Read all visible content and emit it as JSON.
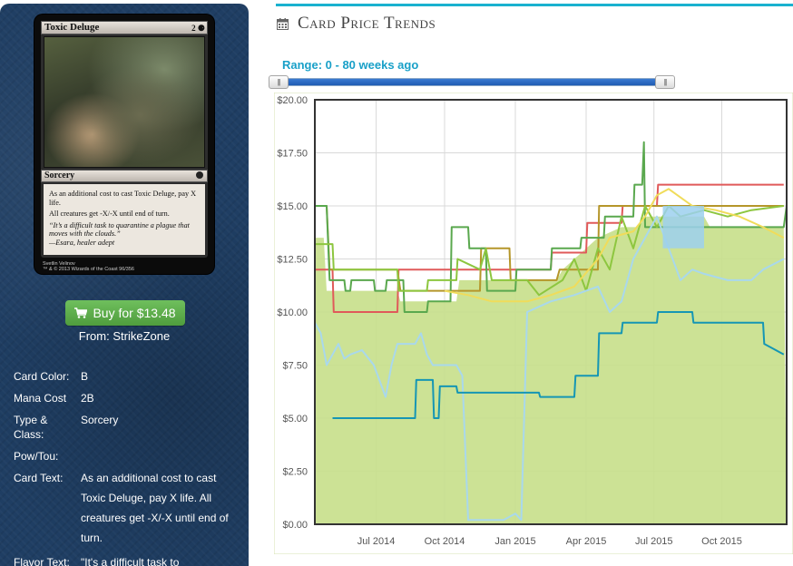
{
  "card": {
    "name": "Toxic Deluge",
    "mana": "2 ⚈",
    "type_line": "Sorcery",
    "rules_text": [
      "As an additional cost to cast Toxic Deluge, pay X life.",
      "All creatures get -X/-X until end of turn."
    ],
    "flavor": "“It’s a difficult task to quarantine a plague that moves with the clouds.”",
    "flavor_attribution": "—Esara, healer adept",
    "artist": "Svetlin Velinov",
    "copyright": "™ & © 2013 Wizards of the Coast 96/356"
  },
  "buy": {
    "label": "Buy for $13.48",
    "from": "From: StrikeZone"
  },
  "details": [
    {
      "label": "Card Color:",
      "value": "B"
    },
    {
      "label": "Mana Cost",
      "value": "2B"
    },
    {
      "label": "Type & Class:",
      "value": "Sorcery"
    },
    {
      "label": "Pow/Tou:",
      "value": ""
    },
    {
      "label": "Card Text:",
      "value": "As an additional cost to cast Toxic Deluge, pay X life. All creatures get -X/-X until end of turn."
    },
    {
      "label": "Flavor Text:",
      "value": "\"It's a difficult task to"
    }
  ],
  "panel": {
    "title": "Card Price Trends",
    "range_label": "Range: 0 - 80 weeks ago"
  },
  "slider": {
    "min_weeks": 0,
    "max_weeks": 80,
    "from_fraction": 0.0,
    "to_fraction": 1.0
  },
  "colors": {
    "accent": "#19b1cf",
    "buy_button": "#5cb045",
    "sidebar_bg": "#1f3e63",
    "area_fill": "#cfe39a",
    "plot_border": "#333333"
  },
  "chart_data": {
    "type": "line",
    "title": "",
    "xlabel": "",
    "ylabel": "",
    "x_ticks": [
      "Jul 2014",
      "Oct 2014",
      "Jan 2015",
      "Apr 2015",
      "Jul 2015",
      "Oct 2015"
    ],
    "y_ticks": [
      "$0.00",
      "$2.50",
      "$5.00",
      "$7.50",
      "$10.00",
      "$12.50",
      "$15.00",
      "$17.50",
      "$20.00"
    ],
    "ylim": [
      0,
      20
    ],
    "xlim": [
      0,
      80
    ],
    "grid": true,
    "legend": "none",
    "series": [
      {
        "color": "#c6df8a",
        "kind": "area",
        "points": [
          [
            0,
            13.5
          ],
          [
            1.5,
            13.5
          ],
          [
            2,
            11
          ],
          [
            14,
            11
          ],
          [
            14.5,
            10.5
          ],
          [
            24,
            10.5
          ],
          [
            24.5,
            11.5
          ],
          [
            41,
            11.5
          ],
          [
            42,
            12
          ],
          [
            44,
            12.5
          ],
          [
            48,
            13.5
          ],
          [
            52,
            14
          ],
          [
            55,
            14
          ],
          [
            56,
            14.5
          ],
          [
            66,
            14.5
          ],
          [
            67,
            14
          ],
          [
            79.5,
            14
          ],
          [
            80,
            0
          ]
        ]
      },
      {
        "color": "#e05a5a",
        "kind": "line",
        "points": [
          [
            0,
            12
          ],
          [
            3,
            12
          ],
          [
            3.2,
            10
          ],
          [
            14,
            10
          ],
          [
            14.2,
            12
          ],
          [
            24,
            12
          ],
          [
            24.2,
            12
          ],
          [
            38,
            12
          ],
          [
            38.2,
            12
          ],
          [
            40,
            12
          ],
          [
            40.2,
            12.8
          ],
          [
            46,
            12.8
          ],
          [
            46.2,
            14.2
          ],
          [
            52,
            14.2
          ],
          [
            52.2,
            15
          ],
          [
            58,
            15
          ],
          [
            58.2,
            16
          ],
          [
            79.5,
            16
          ]
        ]
      },
      {
        "color": "#b5962a",
        "kind": "line",
        "points": [
          [
            0,
            15
          ],
          [
            2,
            15
          ],
          [
            2.5,
            12
          ],
          [
            14,
            12
          ],
          [
            14.5,
            11
          ],
          [
            24,
            11
          ],
          [
            24.5,
            11
          ],
          [
            28,
            11
          ],
          [
            28.2,
            13
          ],
          [
            33,
            13
          ],
          [
            33.2,
            11.5
          ],
          [
            41,
            11.5
          ],
          [
            41.5,
            12
          ],
          [
            48,
            12
          ],
          [
            48.2,
            15
          ],
          [
            79.5,
            15
          ]
        ]
      },
      {
        "color": "#5aa84e",
        "kind": "line",
        "points": [
          [
            0,
            15
          ],
          [
            2,
            15
          ],
          [
            2.5,
            11.5
          ],
          [
            5,
            11.5
          ],
          [
            5.2,
            11
          ],
          [
            6,
            11
          ],
          [
            6.2,
            11.5
          ],
          [
            10,
            11.5
          ],
          [
            10.2,
            11
          ],
          [
            12,
            11
          ],
          [
            12.2,
            11.5
          ],
          [
            15,
            11.5
          ],
          [
            15.2,
            10
          ],
          [
            19,
            10
          ],
          [
            19.2,
            10.5
          ],
          [
            23,
            10.5
          ],
          [
            23.2,
            14
          ],
          [
            26,
            14
          ],
          [
            26.2,
            13
          ],
          [
            29,
            13
          ],
          [
            29.2,
            11
          ],
          [
            34,
            11
          ],
          [
            34.2,
            12
          ],
          [
            40,
            12
          ],
          [
            40.2,
            13
          ],
          [
            45,
            13
          ],
          [
            45.2,
            13.5
          ],
          [
            49,
            13.5
          ],
          [
            49.2,
            14.5
          ],
          [
            54,
            14.5
          ],
          [
            54.2,
            16
          ],
          [
            55.5,
            16
          ],
          [
            55.8,
            18
          ],
          [
            56,
            14
          ],
          [
            79.5,
            14
          ],
          [
            80,
            15
          ]
        ]
      },
      {
        "color": "#8dc63f",
        "kind": "line",
        "points": [
          [
            0,
            13.2
          ],
          [
            3,
            13.2
          ],
          [
            3.2,
            12
          ],
          [
            14,
            12
          ],
          [
            14.2,
            11
          ],
          [
            19,
            11
          ],
          [
            19.2,
            11.5
          ],
          [
            24,
            11.5
          ],
          [
            24.2,
            12.5
          ],
          [
            28,
            12
          ],
          [
            29,
            13
          ],
          [
            30,
            11.5
          ],
          [
            36,
            11.5
          ],
          [
            38,
            10.8
          ],
          [
            42,
            11.5
          ],
          [
            44,
            12.5
          ],
          [
            46,
            11
          ],
          [
            48,
            13
          ],
          [
            50,
            12
          ],
          [
            52,
            14.5
          ],
          [
            54,
            13
          ],
          [
            56,
            15
          ],
          [
            58,
            14
          ],
          [
            60,
            15
          ],
          [
            62,
            14.5
          ],
          [
            66,
            14.8
          ],
          [
            70,
            14.5
          ],
          [
            74,
            14.8
          ],
          [
            79.5,
            15
          ]
        ]
      },
      {
        "color": "#f0dc5a",
        "kind": "line",
        "points": [
          [
            22,
            11
          ],
          [
            26,
            10.8
          ],
          [
            30,
            10.5
          ],
          [
            36,
            10.5
          ],
          [
            40,
            10.8
          ],
          [
            44,
            11.2
          ],
          [
            48,
            12.5
          ],
          [
            50,
            13.5
          ],
          [
            54,
            13.8
          ],
          [
            56,
            14.5
          ],
          [
            58,
            15.5
          ],
          [
            60,
            15.8
          ],
          [
            64,
            15
          ],
          [
            68,
            14.8
          ],
          [
            72,
            14.5
          ],
          [
            76,
            14
          ],
          [
            79.5,
            13.5
          ]
        ]
      },
      {
        "color": "#a9d8ec",
        "kind": "line",
        "points": [
          [
            0,
            9.5
          ],
          [
            1,
            9
          ],
          [
            2,
            7.5
          ],
          [
            3,
            8
          ],
          [
            4,
            8.5
          ],
          [
            5,
            7.8
          ],
          [
            6,
            8
          ],
          [
            8,
            8.2
          ],
          [
            10,
            7.5
          ],
          [
            12,
            6
          ],
          [
            13,
            7.5
          ],
          [
            14,
            8.5
          ],
          [
            17,
            8.5
          ],
          [
            18,
            9
          ],
          [
            19,
            8
          ],
          [
            20,
            7.5
          ],
          [
            24,
            7.5
          ],
          [
            25,
            7
          ],
          [
            26,
            0.2
          ],
          [
            30,
            0.2
          ],
          [
            32,
            0.2
          ],
          [
            34,
            0.5
          ],
          [
            35,
            0.2
          ],
          [
            36,
            10
          ],
          [
            40,
            10.5
          ],
          [
            44,
            10.8
          ],
          [
            46,
            11
          ],
          [
            48,
            11.2
          ],
          [
            50,
            10
          ],
          [
            52,
            10.5
          ],
          [
            54,
            12.5
          ],
          [
            56,
            13.5
          ],
          [
            58,
            14.5
          ],
          [
            60,
            13
          ],
          [
            62,
            11.5
          ],
          [
            64,
            12
          ],
          [
            66,
            11.8
          ],
          [
            70,
            11.5
          ],
          [
            74,
            11.5
          ],
          [
            76,
            12
          ],
          [
            79.5,
            12.5
          ]
        ]
      },
      {
        "color": "#9cd0ef",
        "kind": "band",
        "points": [
          [
            59,
            13
          ],
          [
            66,
            13
          ],
          [
            66,
            15
          ],
          [
            59,
            15
          ]
        ]
      },
      {
        "color": "#1596b4",
        "kind": "line",
        "points": [
          [
            3,
            5
          ],
          [
            17,
            5
          ],
          [
            17.2,
            6.8
          ],
          [
            20,
            6.8
          ],
          [
            20.2,
            5
          ],
          [
            21,
            5
          ],
          [
            21.2,
            6.5
          ],
          [
            24,
            6.5
          ],
          [
            24.2,
            6.2
          ],
          [
            38,
            6.2
          ],
          [
            38.2,
            6
          ],
          [
            44,
            6
          ],
          [
            44.2,
            7
          ],
          [
            48,
            7
          ],
          [
            48.2,
            9
          ],
          [
            52,
            9
          ],
          [
            52.2,
            9.5
          ],
          [
            58,
            9.5
          ],
          [
            58.2,
            10
          ],
          [
            64,
            10
          ],
          [
            64.2,
            9.5
          ],
          [
            76,
            9.5
          ],
          [
            76.2,
            8.5
          ],
          [
            79.5,
            8
          ]
        ]
      }
    ]
  }
}
